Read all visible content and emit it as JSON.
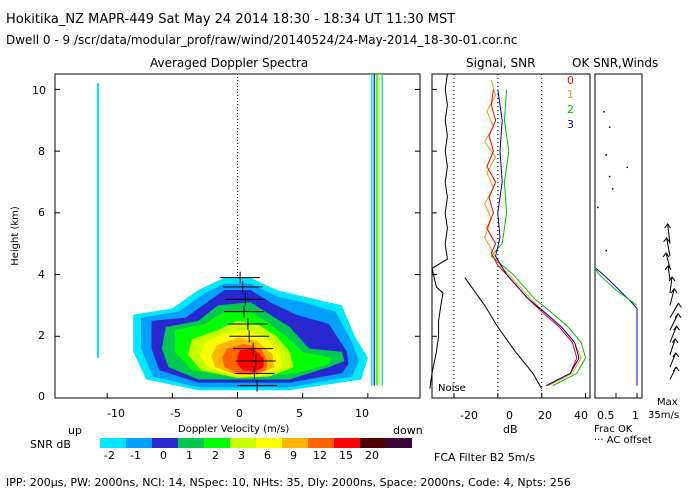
{
  "header": {
    "line1": "Hokitika_NZ  MAPR-449  Sat May 24 2014 18:30 - 18:34 UT 11:30 MST",
    "line2": "Dwell  0 - 9   /scr/data/modular_prof/raw/wind/20140524/24-May-2014_18-30-01.cor.nc"
  },
  "panels": {
    "spectra_title": "Averaged Doppler Spectra",
    "snr_title": "Signal, SNR",
    "winds_title": "OK SNR,Winds"
  },
  "axes": {
    "height_label": "Height (km)",
    "height_ticks": [
      "0",
      "2",
      "4",
      "6",
      "8",
      "10"
    ],
    "velocity_label": "Doppler Velocity (m/s)",
    "velocity_ticks": [
      "-10",
      "-5",
      "0",
      "5",
      "10"
    ],
    "up_label": "up",
    "down_label": "down",
    "db_label": "dB",
    "db_ticks": [
      "-20",
      "0",
      "20",
      "40"
    ],
    "frac_ticks": [
      "0.5",
      "1"
    ],
    "frac_ok_label": "Frac OK",
    "ac_offset_label": "··· AC offset",
    "noise_label": "Noise"
  },
  "legend_dwells": [
    "0",
    "1",
    "2",
    "3"
  ],
  "legend_dwell_colors": [
    "#ff0000",
    "#e8a000",
    "#00c000",
    "#0000c0"
  ],
  "snr_scale": {
    "label": "SNR dB",
    "tick_labels": [
      "-2",
      "-1",
      "0",
      "1",
      "2",
      "3",
      "6",
      "9",
      "12",
      "15",
      "20"
    ],
    "colors": [
      "#00e6ff",
      "#00a0ff",
      "#2828d0",
      "#00c850",
      "#00ff00",
      "#c8ff00",
      "#ffff00",
      "#ffb400",
      "#ff6400",
      "#ff0000",
      "#500000",
      "#3c003c"
    ]
  },
  "max_wind": {
    "label": "Max",
    "value": "35m/s"
  },
  "filter": "FCA Filter B2   5m/s",
  "footer": "IPP: 200μs,  PW: 2000ns,  NCI:  14,  NSpec: 10, NHts: 35,  Dly: 2000ns,  Space: 2000ns,  Code: 4,  Npts: 256",
  "chart_data": {
    "type": "spectrogram-profile",
    "title": "Averaged Doppler Spectra",
    "xlabel": "Doppler Velocity (m/s)",
    "ylabel": "Height (km)",
    "xlim": [
      -14,
      14
    ],
    "ylim": [
      0,
      10.5
    ],
    "mean_velocity_profile": [
      {
        "height": 0.4,
        "velocity": 1.5
      },
      {
        "height": 0.8,
        "velocity": 1.3
      },
      {
        "height": 1.2,
        "velocity": 1.4
      },
      {
        "height": 1.6,
        "velocity": 1.2
      },
      {
        "height": 2.0,
        "velocity": 0.9
      },
      {
        "height": 2.4,
        "velocity": 0.8
      },
      {
        "height": 2.8,
        "velocity": 0.5
      },
      {
        "height": 3.2,
        "velocity": 0.6
      },
      {
        "height": 3.6,
        "velocity": 0.4
      },
      {
        "height": 3.9,
        "velocity": 0.2
      }
    ],
    "snr_profiles": {
      "xlim": [
        -30,
        42
      ],
      "noise": [
        [
          -31,
          0.3
        ],
        [
          -30,
          0.8
        ],
        [
          -28,
          1.5
        ],
        [
          -27,
          2.0
        ],
        [
          -27,
          2.5
        ],
        [
          -26,
          3.0
        ],
        [
          -25,
          3.4
        ],
        [
          -28,
          3.6
        ],
        [
          -30,
          4.2
        ],
        [
          -23,
          4.5
        ],
        [
          -24,
          5.0
        ],
        [
          -23,
          5.5
        ],
        [
          -24,
          6.0
        ],
        [
          -23,
          6.5
        ],
        [
          -24,
          7.0
        ],
        [
          -23,
          7.5
        ],
        [
          -24,
          8.0
        ],
        [
          -23,
          8.5
        ],
        [
          -24,
          9.0
        ],
        [
          -23,
          9.5
        ],
        [
          -24,
          10.0
        ],
        [
          -23,
          10.5
        ]
      ],
      "dwell_0": [
        [
          22,
          0.4
        ],
        [
          33,
          0.8
        ],
        [
          36,
          1.3
        ],
        [
          34,
          1.8
        ],
        [
          28,
          2.3
        ],
        [
          20,
          2.8
        ],
        [
          14,
          3.2
        ],
        [
          9,
          3.6
        ],
        [
          4,
          4.0
        ],
        [
          0,
          4.3
        ],
        [
          -3,
          4.7
        ],
        [
          -1,
          5.0
        ],
        [
          -5,
          5.5
        ],
        [
          -2,
          6.0
        ],
        [
          -4,
          6.5
        ],
        [
          -1,
          7.0
        ],
        [
          -5,
          7.5
        ],
        [
          -2,
          8.0
        ],
        [
          -4,
          8.5
        ],
        [
          -1,
          9.0
        ],
        [
          -3,
          9.5
        ],
        [
          -2,
          10.0
        ]
      ],
      "dwell_1": [
        [
          23,
          0.4
        ],
        [
          34,
          0.8
        ],
        [
          38,
          1.3
        ],
        [
          35,
          1.8
        ],
        [
          29,
          2.3
        ],
        [
          21,
          2.8
        ],
        [
          15,
          3.2
        ],
        [
          10,
          3.6
        ],
        [
          5,
          4.0
        ],
        [
          1,
          4.3
        ],
        [
          -2,
          4.7
        ],
        [
          -6,
          5.2
        ],
        [
          -3,
          5.8
        ],
        [
          -6,
          6.3
        ],
        [
          -2,
          6.8
        ],
        [
          -5,
          7.3
        ],
        [
          -1,
          7.8
        ],
        [
          -6,
          8.3
        ],
        [
          -2,
          8.8
        ],
        [
          -5,
          9.3
        ],
        [
          -1,
          9.8
        ],
        [
          -3,
          10.3
        ]
      ],
      "dwell_2": [
        [
          25,
          0.4
        ],
        [
          36,
          0.8
        ],
        [
          40,
          1.3
        ],
        [
          38,
          1.8
        ],
        [
          32,
          2.3
        ],
        [
          24,
          2.8
        ],
        [
          17,
          3.2
        ],
        [
          12,
          3.6
        ],
        [
          7,
          4.0
        ],
        [
          -3,
          4.6
        ],
        [
          2,
          5.0
        ],
        [
          4,
          6.0
        ],
        [
          3,
          7.0
        ],
        [
          5,
          8.0
        ],
        [
          3,
          9.0
        ],
        [
          4,
          10.0
        ]
      ],
      "dwell_3": [
        [
          22,
          0.4
        ],
        [
          33,
          0.8
        ],
        [
          37,
          1.3
        ],
        [
          35,
          1.8
        ],
        [
          29,
          2.3
        ],
        [
          21,
          2.8
        ],
        [
          14,
          3.2
        ],
        [
          9,
          3.6
        ],
        [
          4,
          4.0
        ],
        [
          -1,
          4.6
        ],
        [
          1,
          5.2
        ],
        [
          0,
          6.0
        ],
        [
          2,
          7.0
        ],
        [
          1,
          8.0
        ],
        [
          2,
          9.0
        ],
        [
          0,
          10.0
        ]
      ]
    },
    "frac_ok": {
      "xlim": [
        0,
        1
      ],
      "values": [
        [
          1,
          0.4
        ],
        [
          1,
          1.0
        ],
        [
          1,
          2.0
        ],
        [
          1,
          2.9
        ],
        [
          0.8,
          3.2
        ],
        [
          0.5,
          3.6
        ],
        [
          0.2,
          4.0
        ],
        [
          0.02,
          4.2
        ]
      ],
      "scattered_points": [
        [
          0.2,
          9.3
        ],
        [
          0.33,
          8.8
        ],
        [
          0.25,
          7.9
        ],
        [
          0.33,
          7.2
        ],
        [
          0.05,
          6.2
        ],
        [
          0.25,
          4.8
        ],
        [
          0.75,
          7.5
        ],
        [
          0.4,
          6.8
        ]
      ]
    },
    "winds": [
      {
        "height": 0.6,
        "speed": 12,
        "dir": 35
      },
      {
        "height": 1.0,
        "speed": 14,
        "dir": 30
      },
      {
        "height": 1.4,
        "speed": 16,
        "dir": 25
      },
      {
        "height": 1.8,
        "speed": 18,
        "dir": 30
      },
      {
        "height": 2.2,
        "speed": 20,
        "dir": 35
      },
      {
        "height": 2.6,
        "speed": 18,
        "dir": 40
      },
      {
        "height": 3.0,
        "speed": 16,
        "dir": 20
      },
      {
        "height": 3.4,
        "speed": 14,
        "dir": 10
      },
      {
        "height": 3.8,
        "speed": 12,
        "dir": 350
      },
      {
        "height": 4.2,
        "speed": 14,
        "dir": 340
      },
      {
        "height": 4.6,
        "speed": 18,
        "dir": 345
      },
      {
        "height": 5.0,
        "speed": 20,
        "dir": 350
      }
    ]
  }
}
